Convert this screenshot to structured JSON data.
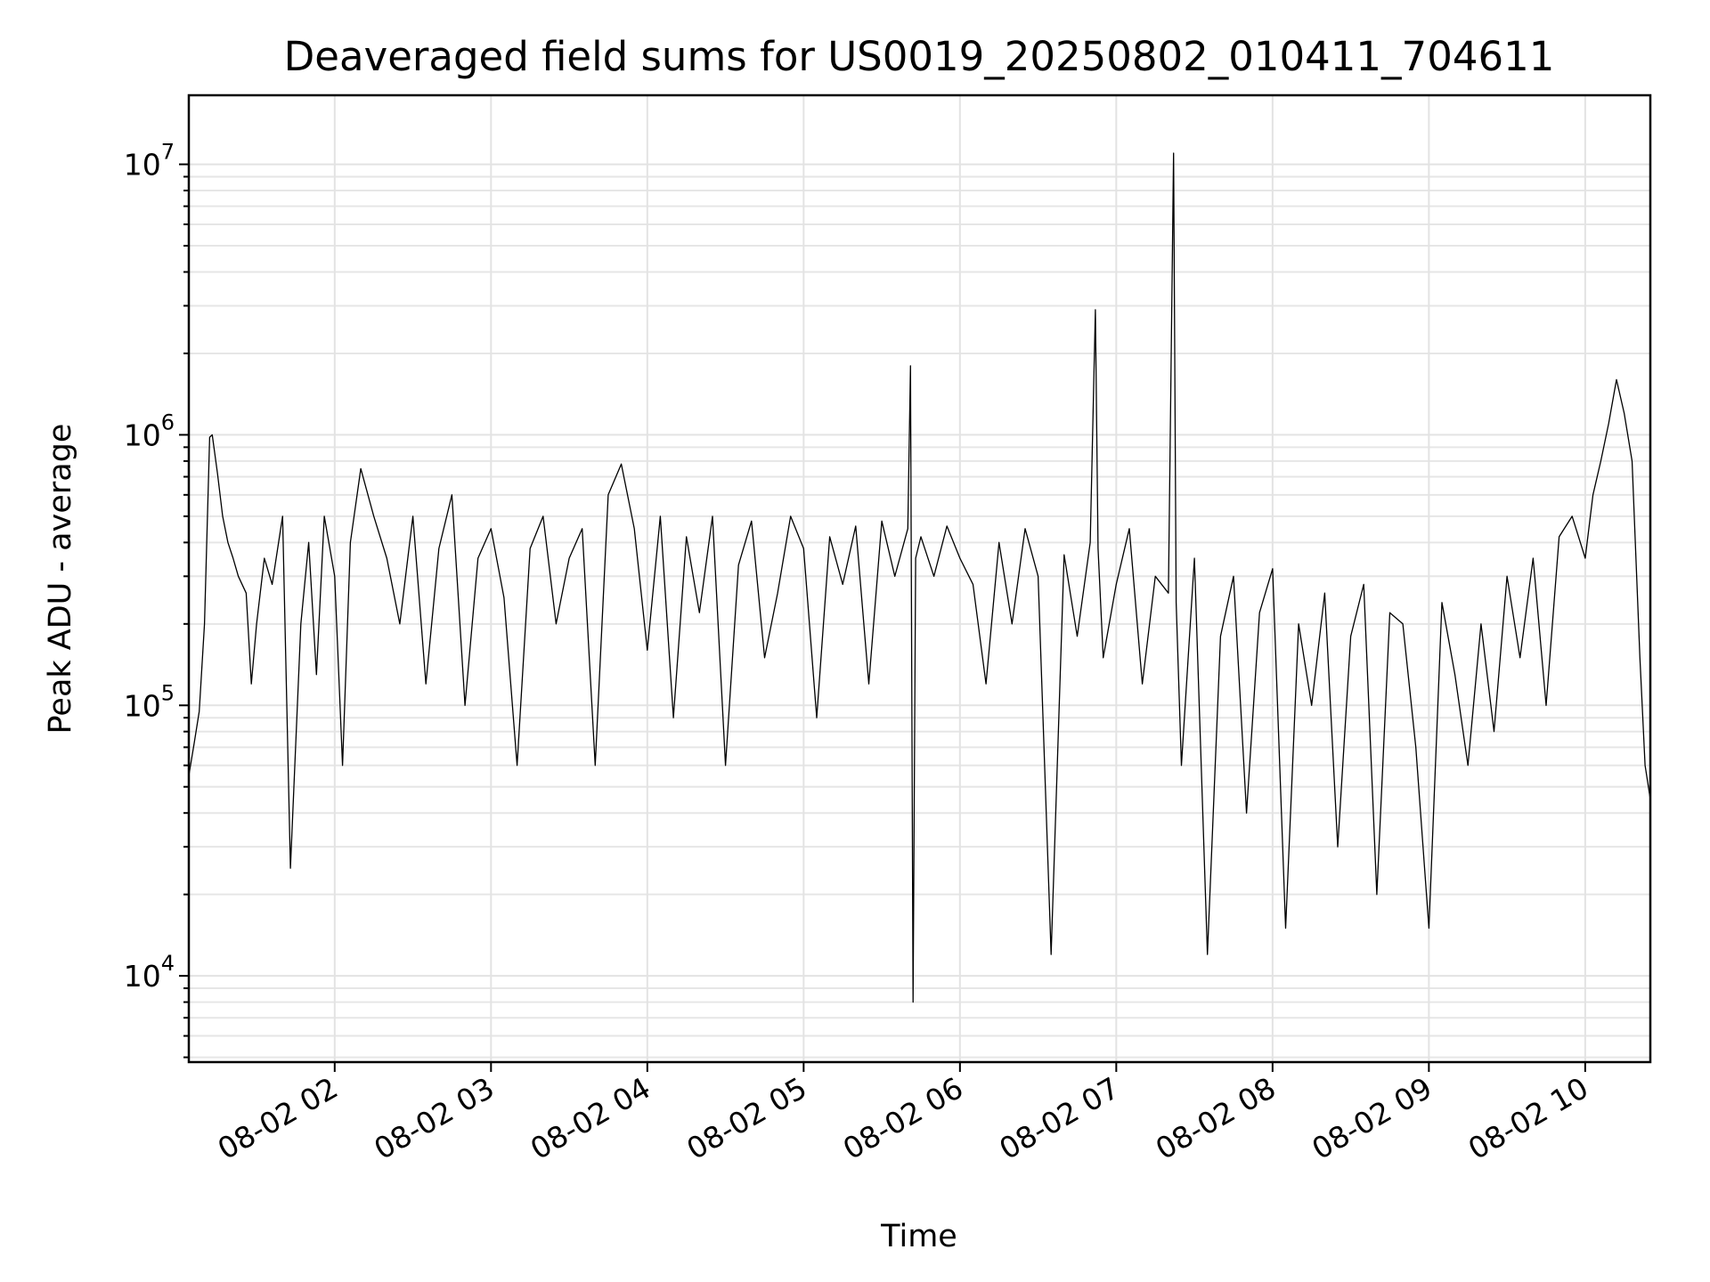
{
  "chart_data": {
    "type": "line",
    "title": "Deaveraged field sums for US0019_20250802_010411_704611",
    "xlabel": "Time",
    "ylabel": "Peak ADU - average",
    "y_scale": "log",
    "x_range": [
      "2025-08-02 01:04",
      "2025-08-02 10:25"
    ],
    "ylim": [
      4800,
      18000000
    ],
    "x_ticks": [
      {
        "value": "2025-08-02 02:00",
        "label": "08-02 02"
      },
      {
        "value": "2025-08-02 03:00",
        "label": "08-02 03"
      },
      {
        "value": "2025-08-02 04:00",
        "label": "08-02 04"
      },
      {
        "value": "2025-08-02 05:00",
        "label": "08-02 05"
      },
      {
        "value": "2025-08-02 06:00",
        "label": "08-02 06"
      },
      {
        "value": "2025-08-02 07:00",
        "label": "08-02 07"
      },
      {
        "value": "2025-08-02 08:00",
        "label": "08-02 08"
      },
      {
        "value": "2025-08-02 09:00",
        "label": "08-02 09"
      },
      {
        "value": "2025-08-02 10:00",
        "label": "08-02 10"
      }
    ],
    "y_ticks": [
      {
        "value": 10000,
        "base": "10",
        "exp": "4"
      },
      {
        "value": 100000,
        "base": "10",
        "exp": "5"
      },
      {
        "value": 1000000,
        "base": "10",
        "exp": "6"
      },
      {
        "value": 10000000,
        "base": "10",
        "exp": "7"
      }
    ],
    "grid": true,
    "line_color": "#000000",
    "series": [
      {
        "x": [
          "2025-08-02 01:04",
          "2025-08-02 01:06",
          "2025-08-02 01:08",
          "2025-08-02 01:10",
          "2025-08-02 01:12",
          "2025-08-02 01:13",
          "2025-08-02 01:15",
          "2025-08-02 01:17",
          "2025-08-02 01:19",
          "2025-08-02 01:21",
          "2025-08-02 01:23",
          "2025-08-02 01:26",
          "2025-08-02 01:28",
          "2025-08-02 01:30",
          "2025-08-02 01:33",
          "2025-08-02 01:36",
          "2025-08-02 01:40",
          "2025-08-02 01:43",
          "2025-08-02 01:47",
          "2025-08-02 01:50",
          "2025-08-02 01:53",
          "2025-08-02 01:56",
          "2025-08-02 02:00",
          "2025-08-02 02:03",
          "2025-08-02 02:06",
          "2025-08-02 02:10",
          "2025-08-02 02:15",
          "2025-08-02 02:20",
          "2025-08-02 02:25",
          "2025-08-02 02:30",
          "2025-08-02 02:35",
          "2025-08-02 02:40",
          "2025-08-02 02:45",
          "2025-08-02 02:50",
          "2025-08-02 02:55",
          "2025-08-02 03:00",
          "2025-08-02 03:05",
          "2025-08-02 03:10",
          "2025-08-02 03:15",
          "2025-08-02 03:20",
          "2025-08-02 03:25",
          "2025-08-02 03:30",
          "2025-08-02 03:35",
          "2025-08-02 03:40",
          "2025-08-02 03:45",
          "2025-08-02 03:50",
          "2025-08-02 03:55",
          "2025-08-02 04:00",
          "2025-08-02 04:05",
          "2025-08-02 04:10",
          "2025-08-02 04:15",
          "2025-08-02 04:20",
          "2025-08-02 04:25",
          "2025-08-02 04:30",
          "2025-08-02 04:35",
          "2025-08-02 04:40",
          "2025-08-02 04:45",
          "2025-08-02 04:50",
          "2025-08-02 04:55",
          "2025-08-02 05:00",
          "2025-08-02 05:05",
          "2025-08-02 05:10",
          "2025-08-02 05:15",
          "2025-08-02 05:20",
          "2025-08-02 05:25",
          "2025-08-02 05:30",
          "2025-08-02 05:35",
          "2025-08-02 05:40",
          "2025-08-02 05:41",
          "2025-08-02 05:42",
          "2025-08-02 05:43",
          "2025-08-02 05:45",
          "2025-08-02 05:50",
          "2025-08-02 05:55",
          "2025-08-02 06:00",
          "2025-08-02 06:05",
          "2025-08-02 06:10",
          "2025-08-02 06:15",
          "2025-08-02 06:20",
          "2025-08-02 06:25",
          "2025-08-02 06:30",
          "2025-08-02 06:35",
          "2025-08-02 06:40",
          "2025-08-02 06:45",
          "2025-08-02 06:50",
          "2025-08-02 06:52",
          "2025-08-02 06:53",
          "2025-08-02 06:55",
          "2025-08-02 07:00",
          "2025-08-02 07:05",
          "2025-08-02 07:10",
          "2025-08-02 07:15",
          "2025-08-02 07:20",
          "2025-08-02 07:22",
          "2025-08-02 07:23",
          "2025-08-02 07:25",
          "2025-08-02 07:30",
          "2025-08-02 07:35",
          "2025-08-02 07:40",
          "2025-08-02 07:45",
          "2025-08-02 07:50",
          "2025-08-02 07:55",
          "2025-08-02 08:00",
          "2025-08-02 08:05",
          "2025-08-02 08:10",
          "2025-08-02 08:15",
          "2025-08-02 08:20",
          "2025-08-02 08:25",
          "2025-08-02 08:30",
          "2025-08-02 08:35",
          "2025-08-02 08:40",
          "2025-08-02 08:45",
          "2025-08-02 08:50",
          "2025-08-02 08:55",
          "2025-08-02 09:00",
          "2025-08-02 09:05",
          "2025-08-02 09:10",
          "2025-08-02 09:15",
          "2025-08-02 09:20",
          "2025-08-02 09:25",
          "2025-08-02 09:30",
          "2025-08-02 09:35",
          "2025-08-02 09:40",
          "2025-08-02 09:45",
          "2025-08-02 09:50",
          "2025-08-02 09:55",
          "2025-08-02 10:00",
          "2025-08-02 10:03",
          "2025-08-02 10:06",
          "2025-08-02 10:09",
          "2025-08-02 10:12",
          "2025-08-02 10:15",
          "2025-08-02 10:18",
          "2025-08-02 10:21",
          "2025-08-02 10:23",
          "2025-08-02 10:25"
        ],
        "y": [
          55000,
          72000,
          95000,
          200000,
          980000,
          1000000,
          720000,
          500000,
          400000,
          350000,
          300000,
          260000,
          120000,
          200000,
          350000,
          280000,
          500000,
          25000,
          200000,
          400000,
          130000,
          500000,
          300000,
          60000,
          400000,
          750000,
          500000,
          350000,
          200000,
          500000,
          120000,
          380000,
          600000,
          100000,
          350000,
          450000,
          250000,
          60000,
          380000,
          500000,
          200000,
          350000,
          450000,
          60000,
          600000,
          780000,
          450000,
          160000,
          500000,
          90000,
          420000,
          220000,
          500000,
          60000,
          330000,
          480000,
          150000,
          260000,
          500000,
          380000,
          90000,
          420000,
          280000,
          460000,
          120000,
          480000,
          300000,
          450000,
          1800000,
          8000,
          350000,
          420000,
          300000,
          460000,
          350000,
          280000,
          120000,
          400000,
          200000,
          450000,
          300000,
          12000,
          360000,
          180000,
          400000,
          2900000,
          380000,
          150000,
          280000,
          450000,
          120000,
          300000,
          260000,
          11000000,
          240000,
          60000,
          350000,
          12000,
          180000,
          300000,
          40000,
          220000,
          320000,
          15000,
          200000,
          100000,
          260000,
          30000,
          180000,
          280000,
          20000,
          220000,
          200000,
          70000,
          15000,
          240000,
          130000,
          60000,
          200000,
          80000,
          300000,
          150000,
          350000,
          100000,
          420000,
          500000,
          350000,
          600000,
          800000,
          1100000,
          1600000,
          1200000,
          800000,
          150000,
          60000,
          45000
        ]
      }
    ]
  }
}
